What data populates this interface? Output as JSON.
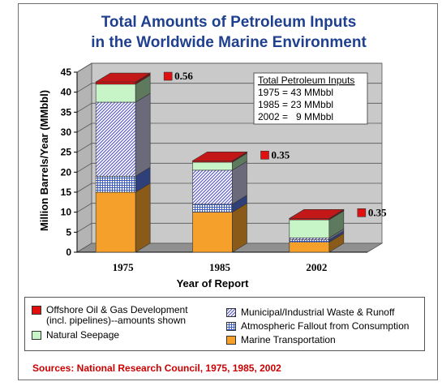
{
  "chart_data": {
    "type": "bar",
    "stacked": true,
    "three_d": true,
    "title": "Total Amounts of Petroleum Inputs",
    "subtitle": "in the Worldwide Marine Environment",
    "xlabel": "Year of Report",
    "ylabel": "Million Barrels/Year (MMbbl)",
    "ylim": [
      0,
      45
    ],
    "yticks": [
      0,
      5,
      10,
      15,
      20,
      25,
      30,
      35,
      40,
      45
    ],
    "grid": true,
    "categories": [
      "1975",
      "1985",
      "2002"
    ],
    "series": [
      {
        "name": "Marine Transportation",
        "values": [
          15,
          10,
          2.5
        ],
        "color": "#f5a02a",
        "pattern": "solid"
      },
      {
        "name": "Atmospheric Fallout from Consumption",
        "values": [
          4,
          2,
          0.6
        ],
        "color": "#4a68c8",
        "pattern": "grid"
      },
      {
        "name": "Municipal/Industrial Waste & Runoff",
        "values": [
          18.5,
          8.5,
          0.5
        ],
        "color": "#5555c8",
        "pattern": "diagonal"
      },
      {
        "name": "Natural Seepage",
        "values": [
          4.5,
          2,
          4.5
        ],
        "color": "#c8f5c8",
        "pattern": "solid"
      },
      {
        "name": "Offshore Oil & Gas Development",
        "values": [
          0.56,
          0.35,
          0.35
        ],
        "color": "#e01010",
        "pattern": "solid"
      }
    ],
    "offshore_labels": [
      "0.56",
      "0.35",
      "0.35"
    ],
    "inset": {
      "title": "Total Petroleum Inputs",
      "lines": [
        "1975 = 43 MMbbl",
        "1985 = 23 MMbbl",
        "2002 =   9 MMbbl"
      ]
    },
    "legend": {
      "items": [
        {
          "key": "offshore",
          "label": "Offshore Oil & Gas Development",
          "label2": "(incl. pipelines)--amounts shown",
          "color": "#e01010"
        },
        {
          "key": "seepage",
          "label": "Natural Seepage",
          "color": "#c8f5c8"
        },
        {
          "key": "municipal",
          "label": "Municipal/Industrial Waste & Runoff",
          "color": "#5555c8"
        },
        {
          "key": "atmospheric",
          "label": "Atmospheric Fallout from Consumption",
          "color": "#4a68c8"
        },
        {
          "key": "marine",
          "label": "Marine Transportation",
          "color": "#f5a02a"
        }
      ]
    },
    "source": "Sources:  National Research Council, 1975, 1985, 2002"
  }
}
